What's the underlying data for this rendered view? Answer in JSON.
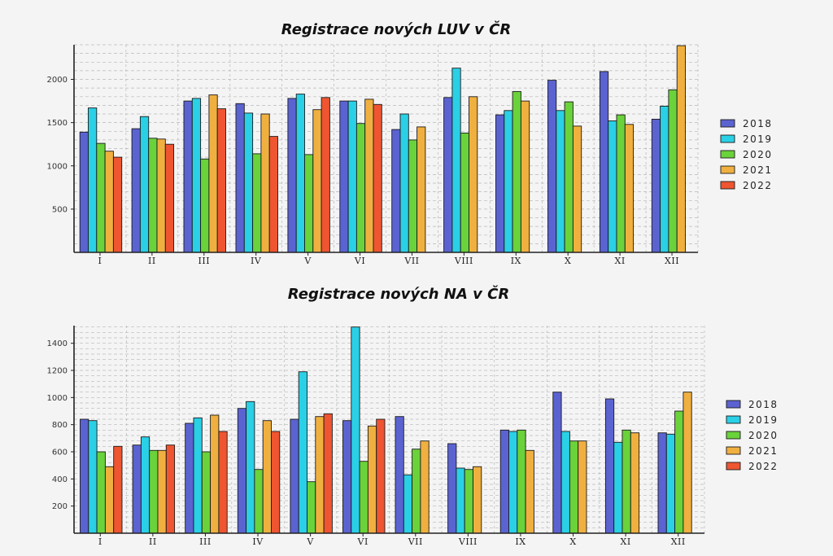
{
  "colors": {
    "2018": "#5b63d1",
    "2019": "#2ad0e6",
    "2020": "#6ad23a",
    "2021": "#f0b040",
    "2022": "#ee5530",
    "grid": "#b8b8b8",
    "axis": "#222222"
  },
  "chart_data": [
    {
      "type": "bar",
      "title": "Registrace nových LUV v ČR",
      "xlabel": "",
      "ylabel": "",
      "categories": [
        "I",
        "II",
        "III",
        "IV",
        "V",
        "VI",
        "VII",
        "VIII",
        "IX",
        "X",
        "XI",
        "XII"
      ],
      "yticks": [
        "500",
        "1000",
        "1500",
        "2000"
      ],
      "ytick_values": [
        500,
        1000,
        1500,
        2000
      ],
      "ylim": [
        0,
        2400
      ],
      "grid": true,
      "legend_position": "right",
      "series": [
        {
          "name": "2018",
          "values": [
            1390,
            1430,
            1750,
            1720,
            1780,
            1750,
            1420,
            1790,
            1590,
            1990,
            2090,
            1540
          ]
        },
        {
          "name": "2019",
          "values": [
            1670,
            1570,
            1780,
            1610,
            1830,
            1750,
            1600,
            2130,
            1640,
            1640,
            1520,
            1690
          ]
        },
        {
          "name": "2020",
          "values": [
            1260,
            1320,
            1080,
            1140,
            1130,
            1490,
            1300,
            1380,
            1860,
            1740,
            1590,
            1880
          ]
        },
        {
          "name": "2021",
          "values": [
            1170,
            1310,
            1820,
            1600,
            1650,
            1770,
            1450,
            1800,
            1750,
            1460,
            1480,
            2390
          ]
        },
        {
          "name": "2022",
          "values": [
            1100,
            1250,
            1660,
            1340,
            1790,
            1710,
            null,
            null,
            null,
            null,
            null,
            null
          ]
        }
      ]
    },
    {
      "type": "bar",
      "title": "Registrace nových NA v ČR",
      "xlabel": "",
      "ylabel": "",
      "categories": [
        "I",
        "II",
        "III",
        "IV",
        "V",
        "VI",
        "VII",
        "VIII",
        "IX",
        "X",
        "XI",
        "XII"
      ],
      "yticks": [
        "200",
        "400",
        "600",
        "800",
        "1000",
        "1200",
        "1400"
      ],
      "ytick_values": [
        200,
        400,
        600,
        800,
        1000,
        1200,
        1400
      ],
      "ylim": [
        0,
        1530
      ],
      "grid": true,
      "legend_position": "right",
      "series": [
        {
          "name": "2018",
          "values": [
            840,
            650,
            810,
            920,
            840,
            830,
            860,
            660,
            760,
            1040,
            990,
            740
          ]
        },
        {
          "name": "2019",
          "values": [
            830,
            710,
            850,
            970,
            1190,
            1520,
            430,
            480,
            750,
            750,
            670,
            730
          ]
        },
        {
          "name": "2020",
          "values": [
            600,
            610,
            600,
            470,
            380,
            530,
            620,
            470,
            760,
            680,
            760,
            900
          ]
        },
        {
          "name": "2021",
          "values": [
            490,
            610,
            870,
            830,
            860,
            790,
            680,
            490,
            610,
            680,
            740,
            1040
          ]
        },
        {
          "name": "2022",
          "values": [
            640,
            650,
            750,
            750,
            880,
            840,
            null,
            null,
            null,
            null,
            null,
            null
          ]
        }
      ]
    }
  ]
}
